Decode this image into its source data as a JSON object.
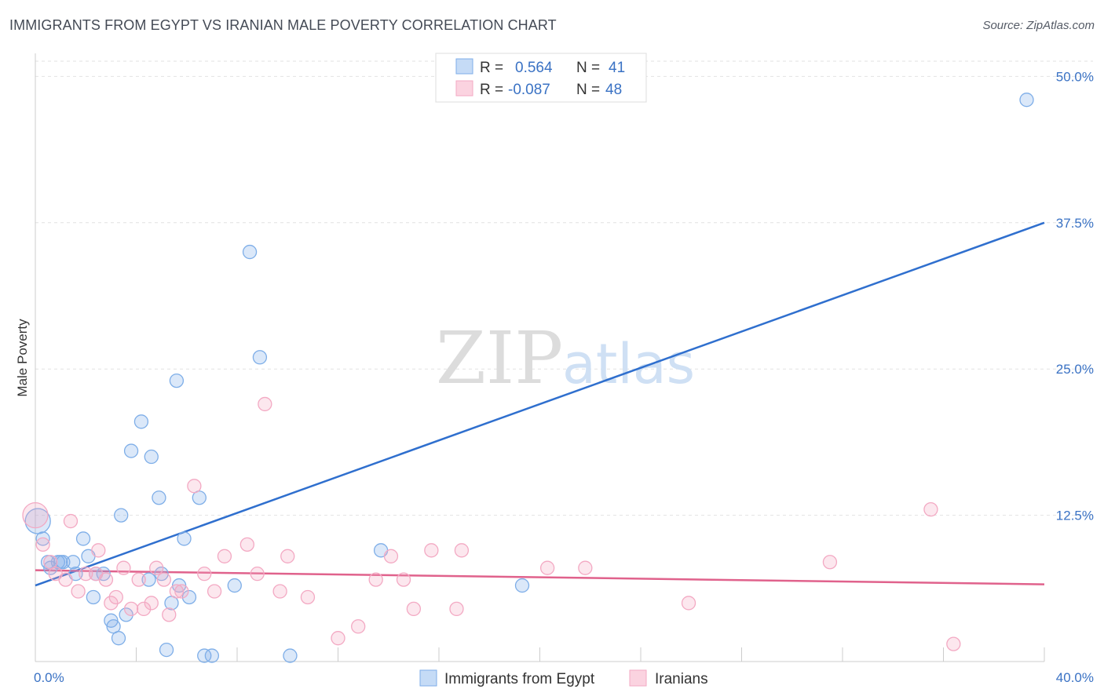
{
  "title": "IMMIGRANTS FROM EGYPT VS IRANIAN MALE POVERTY CORRELATION CHART",
  "source": "Source: ZipAtlas.com",
  "watermark": {
    "zip": "ZIP",
    "atlas": "atlas"
  },
  "chart_data": {
    "type": "scatter",
    "xlabel": "",
    "ylabel": "Male Poverty",
    "xlim": [
      0,
      40
    ],
    "ylim": [
      0,
      50
    ],
    "x_tick_labels": [
      {
        "value": 0,
        "label": "0.0%"
      },
      {
        "value": 40,
        "label": "40.0%"
      }
    ],
    "y_tick_labels": [
      {
        "value": 12.5,
        "label": "12.5%"
      },
      {
        "value": 25,
        "label": "25.0%"
      },
      {
        "value": 37.5,
        "label": "37.5%"
      },
      {
        "value": 50,
        "label": "50.0%"
      }
    ],
    "legend": {
      "r_label": "R =",
      "n_label": "N =",
      "entries": [
        {
          "r": "0.564",
          "n": "41"
        },
        {
          "r": "-0.087",
          "n": "48"
        }
      ]
    },
    "series": [
      {
        "name": "Immigrants from Egypt",
        "color": "#7eaee8",
        "line_color": "#2f6fce",
        "trend": {
          "x": [
            0,
            40
          ],
          "y": [
            6.5,
            37.5
          ]
        },
        "points": [
          [
            0.1,
            12
          ],
          [
            0.3,
            10.5
          ],
          [
            0.5,
            8.5
          ],
          [
            0.6,
            8
          ],
          [
            0.9,
            8.5
          ],
          [
            1.0,
            8.5
          ],
          [
            1.1,
            8.5
          ],
          [
            1.5,
            8.5
          ],
          [
            1.6,
            7.5
          ],
          [
            1.9,
            10.5
          ],
          [
            2.1,
            9
          ],
          [
            2.3,
            5.5
          ],
          [
            2.4,
            7.5
          ],
          [
            2.7,
            7.5
          ],
          [
            3.0,
            3.5
          ],
          [
            3.1,
            3.0
          ],
          [
            3.3,
            2.0
          ],
          [
            3.4,
            12.5
          ],
          [
            3.6,
            4.0
          ],
          [
            3.8,
            18
          ],
          [
            4.2,
            20.5
          ],
          [
            4.5,
            7.0
          ],
          [
            4.6,
            17.5
          ],
          [
            4.9,
            14
          ],
          [
            5.0,
            7.5
          ],
          [
            5.2,
            1.0
          ],
          [
            5.4,
            5.0
          ],
          [
            5.6,
            24
          ],
          [
            5.7,
            6.5
          ],
          [
            5.9,
            10.5
          ],
          [
            6.1,
            5.5
          ],
          [
            6.5,
            14
          ],
          [
            6.7,
            0.5
          ],
          [
            7.0,
            0.5
          ],
          [
            7.9,
            6.5
          ],
          [
            8.5,
            35
          ],
          [
            8.9,
            26
          ],
          [
            10.1,
            0.5
          ],
          [
            13.7,
            9.5
          ],
          [
            19.3,
            6.5
          ],
          [
            39.3,
            48
          ]
        ]
      },
      {
        "name": "Iranians",
        "color": "#f3a9c3",
        "line_color": "#e0628c",
        "trend": {
          "x": [
            0,
            40
          ],
          "y": [
            7.8,
            6.6
          ]
        },
        "points": [
          [
            0.0,
            12.5
          ],
          [
            0.3,
            10
          ],
          [
            0.6,
            8.5
          ],
          [
            0.8,
            7.5
          ],
          [
            1.2,
            7.0
          ],
          [
            1.4,
            12
          ],
          [
            1.7,
            6.0
          ],
          [
            2.0,
            7.5
          ],
          [
            2.4,
            7.5
          ],
          [
            2.5,
            9.5
          ],
          [
            2.8,
            7.0
          ],
          [
            3.0,
            5.0
          ],
          [
            3.2,
            5.5
          ],
          [
            3.5,
            8.0
          ],
          [
            3.8,
            4.5
          ],
          [
            4.1,
            7.0
          ],
          [
            4.3,
            4.5
          ],
          [
            4.6,
            5.0
          ],
          [
            4.8,
            8.0
          ],
          [
            5.1,
            7.0
          ],
          [
            5.3,
            4.0
          ],
          [
            5.6,
            6.0
          ],
          [
            5.8,
            6.0
          ],
          [
            6.3,
            15
          ],
          [
            6.7,
            7.5
          ],
          [
            7.1,
            6.0
          ],
          [
            7.5,
            9.0
          ],
          [
            8.4,
            10
          ],
          [
            8.8,
            7.5
          ],
          [
            9.1,
            22
          ],
          [
            9.7,
            6.0
          ],
          [
            10.0,
            9.0
          ],
          [
            10.8,
            5.5
          ],
          [
            12.0,
            2.0
          ],
          [
            12.8,
            3.0
          ],
          [
            13.5,
            7.0
          ],
          [
            14.1,
            9.0
          ],
          [
            14.6,
            7.0
          ],
          [
            15.0,
            4.5
          ],
          [
            15.7,
            9.5
          ],
          [
            16.7,
            4.5
          ],
          [
            16.9,
            9.5
          ],
          [
            20.3,
            8.0
          ],
          [
            21.8,
            8.0
          ],
          [
            25.9,
            5.0
          ],
          [
            31.5,
            8.5
          ],
          [
            35.5,
            13
          ],
          [
            36.4,
            1.5
          ]
        ]
      }
    ]
  }
}
